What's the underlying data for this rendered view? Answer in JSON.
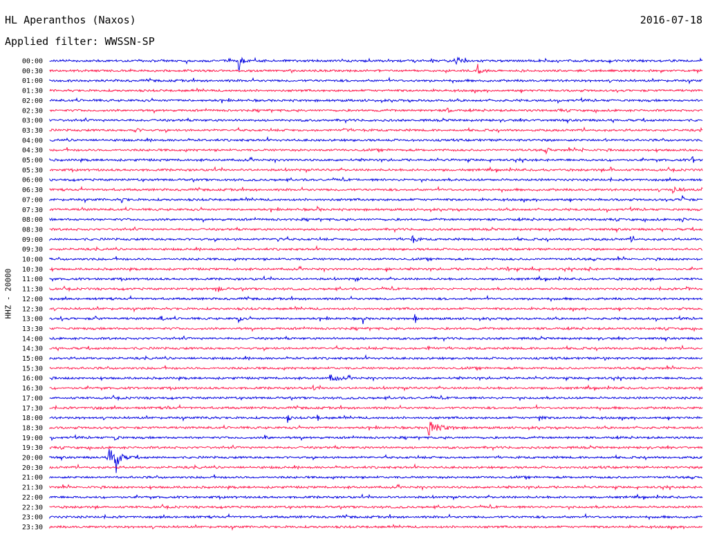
{
  "header": {
    "station": "HL Aperanthos (Naxos)",
    "date": "2016-07-18",
    "filter": "Applied filter: WWSSN-SP"
  },
  "chart_data": {
    "type": "line",
    "title": "HL Aperanthos (Naxos)",
    "ylabel": "HHZ - 20000",
    "colors": [
      "#0000e0",
      "#ff1a4d"
    ],
    "rows": [
      {
        "label": "00:00",
        "events": [
          [
            0.29,
            14,
            0.004
          ],
          [
            0.62,
            8,
            0.008
          ]
        ]
      },
      {
        "label": "00:30",
        "events": [
          [
            0.655,
            12,
            0.004
          ]
        ]
      },
      {
        "label": "01:00",
        "events": []
      },
      {
        "label": "01:30",
        "events": []
      },
      {
        "label": "02:00",
        "events": []
      },
      {
        "label": "02:30",
        "events": [
          [
            0.61,
            3,
            0.004
          ],
          [
            0.78,
            2,
            0.003
          ]
        ]
      },
      {
        "label": "03:00",
        "events": []
      },
      {
        "label": "03:30",
        "events": [
          [
            0.13,
            3,
            0.006
          ],
          [
            0.45,
            3,
            0.004
          ],
          [
            0.48,
            2,
            0.003
          ]
        ]
      },
      {
        "label": "04:00",
        "events": [
          [
            0.85,
            3,
            0.003
          ]
        ]
      },
      {
        "label": "04:30",
        "events": [
          [
            0.76,
            4,
            0.004
          ],
          [
            0.815,
            3,
            0.003
          ]
        ]
      },
      {
        "label": "05:00",
        "events": [
          [
            0.985,
            5,
            0.003
          ]
        ]
      },
      {
        "label": "05:30",
        "events": [
          [
            0.86,
            3,
            0.004
          ]
        ]
      },
      {
        "label": "06:00",
        "events": []
      },
      {
        "label": "06:30",
        "events": [
          [
            0.955,
            4,
            0.01
          ]
        ]
      },
      {
        "label": "07:00",
        "events": [
          [
            0.11,
            3,
            0.005
          ],
          [
            0.97,
            7,
            0.003
          ]
        ]
      },
      {
        "label": "07:30",
        "events": [
          [
            0.05,
            2,
            0.003
          ],
          [
            0.41,
            3,
            0.003
          ]
        ]
      },
      {
        "label": "08:00",
        "events": [
          [
            0.97,
            3,
            0.003
          ]
        ]
      },
      {
        "label": "08:30",
        "events": []
      },
      {
        "label": "09:00",
        "events": [
          [
            0.35,
            5,
            0.003
          ],
          [
            0.555,
            10,
            0.004
          ],
          [
            0.89,
            3,
            0.004
          ]
        ]
      },
      {
        "label": "09:30",
        "events": []
      },
      {
        "label": "10:00",
        "events": []
      },
      {
        "label": "10:30",
        "events": [
          [
            0.515,
            5,
            0.003
          ],
          [
            0.7,
            4,
            0.004
          ],
          [
            0.74,
            3,
            0.003
          ],
          [
            0.825,
            4,
            0.003
          ]
        ]
      },
      {
        "label": "11:00",
        "events": [
          [
            0.47,
            2,
            0.004
          ]
        ]
      },
      {
        "label": "11:30",
        "events": [
          [
            0.255,
            6,
            0.006
          ],
          [
            0.975,
            3,
            0.005
          ]
        ]
      },
      {
        "label": "12:00",
        "events": []
      },
      {
        "label": "12:30",
        "events": []
      },
      {
        "label": "13:00",
        "events": [
          [
            0.016,
            4,
            0.002
          ],
          [
            0.07,
            5,
            0.002
          ],
          [
            0.17,
            6,
            0.003
          ],
          [
            0.29,
            7,
            0.002
          ],
          [
            0.48,
            7,
            0.002
          ],
          [
            0.56,
            6,
            0.002
          ]
        ]
      },
      {
        "label": "13:30",
        "events": []
      },
      {
        "label": "14:00",
        "events": []
      },
      {
        "label": "14:30",
        "events": [
          [
            0.58,
            3,
            0.004
          ]
        ]
      },
      {
        "label": "15:00",
        "events": [
          [
            0.85,
            3,
            0.003
          ]
        ]
      },
      {
        "label": "15:30",
        "events": []
      },
      {
        "label": "16:00",
        "events": [
          [
            0.43,
            4,
            0.012
          ]
        ]
      },
      {
        "label": "16:30",
        "events": [
          [
            0.405,
            3,
            0.004
          ]
        ]
      },
      {
        "label": "17:00",
        "events": []
      },
      {
        "label": "17:30",
        "events": [
          [
            0.065,
            2,
            0.008
          ],
          [
            0.18,
            3,
            0.003
          ]
        ]
      },
      {
        "label": "18:00",
        "events": [
          [
            0.24,
            5,
            0.003
          ],
          [
            0.365,
            6,
            0.002
          ],
          [
            0.41,
            6,
            0.002
          ],
          [
            0.75,
            8,
            0.003
          ]
        ]
      },
      {
        "label": "18:30",
        "events": [
          [
            0.58,
            11,
            0.015
          ]
        ]
      },
      {
        "label": "19:00",
        "events": [
          [
            0.1,
            7,
            0.003
          ],
          [
            0.33,
            3,
            0.004
          ]
        ]
      },
      {
        "label": "19:30",
        "events": []
      },
      {
        "label": "20:00",
        "events": [
          [
            0.09,
            14,
            0.012
          ],
          [
            0.1,
            33,
            0.003
          ]
        ]
      },
      {
        "label": "20:30",
        "events": []
      },
      {
        "label": "21:00",
        "events": []
      },
      {
        "label": "21:30",
        "events": []
      },
      {
        "label": "22:00",
        "events": []
      },
      {
        "label": "22:30",
        "events": []
      },
      {
        "label": "23:00",
        "events": []
      },
      {
        "label": "23:30",
        "events": []
      }
    ]
  }
}
